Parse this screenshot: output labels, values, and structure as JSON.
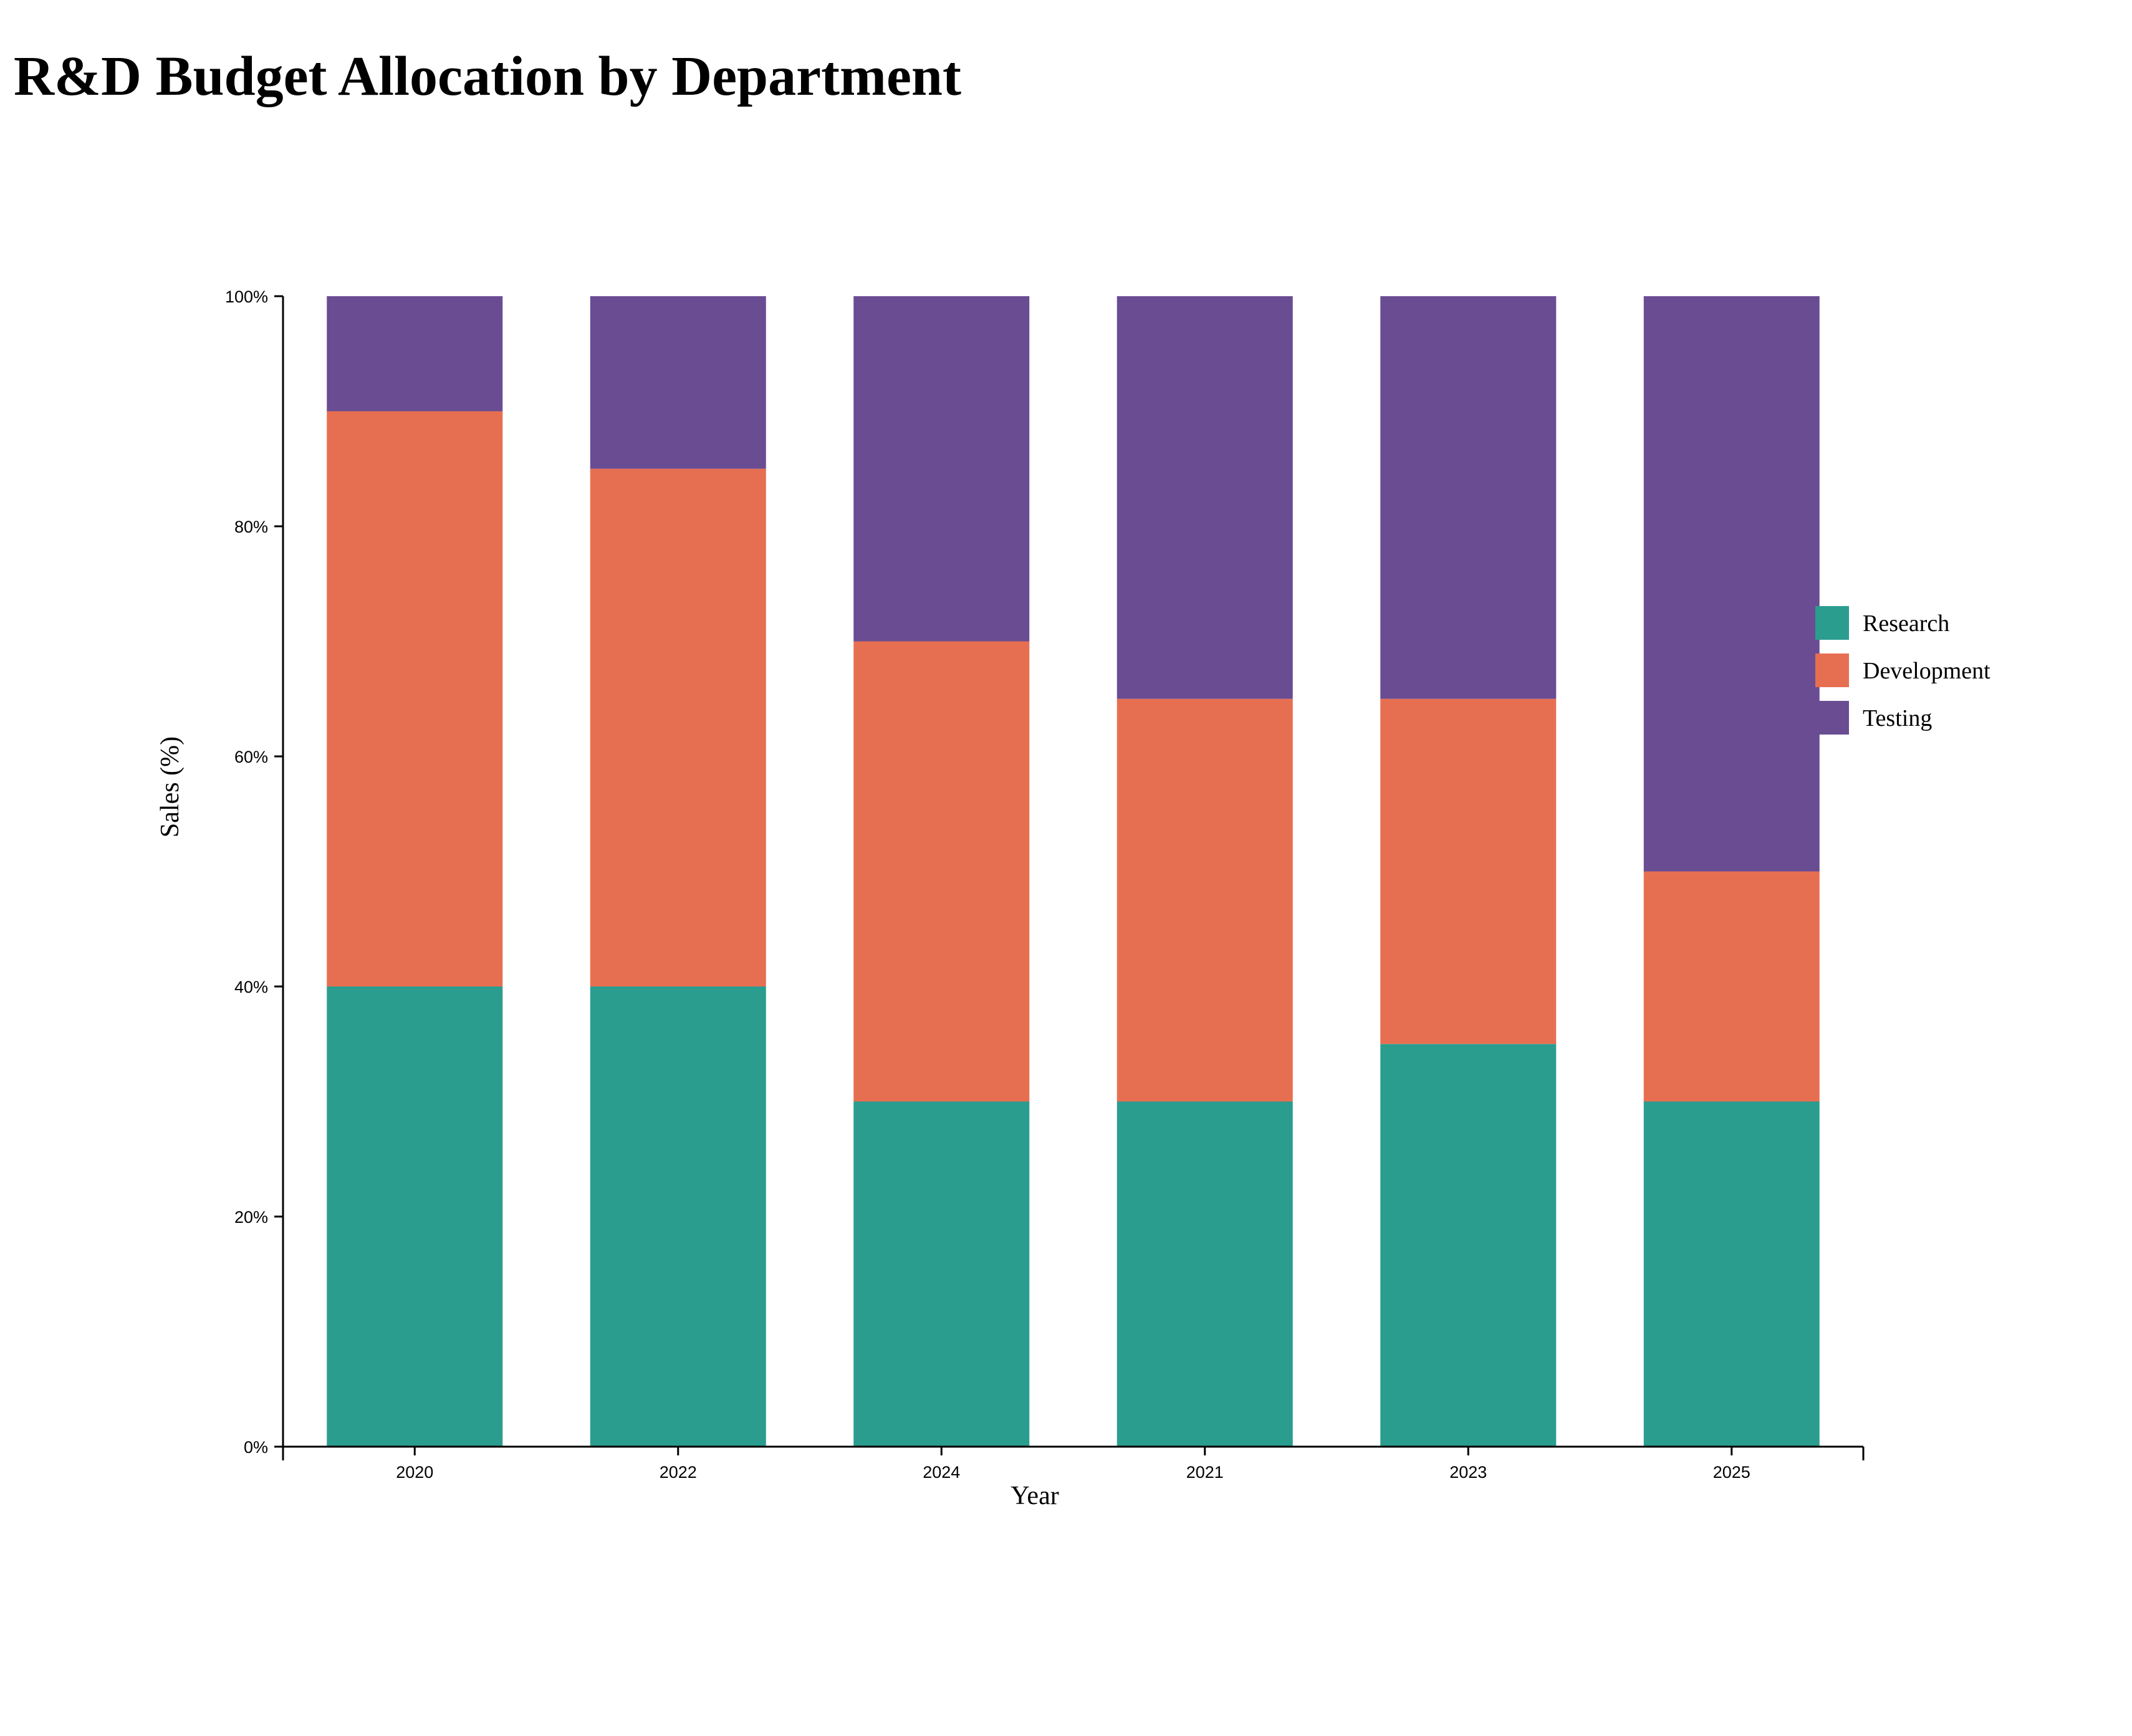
{
  "chart_data": {
    "type": "bar",
    "stacked": true,
    "title": "R&D Budget Allocation by Department",
    "xlabel": "Year",
    "ylabel": "Sales (%)",
    "categories": [
      "2020",
      "2022",
      "2024",
      "2021",
      "2023",
      "2025"
    ],
    "series": [
      {
        "name": "Research",
        "color": "#2a9d8f",
        "values": [
          40,
          40,
          30,
          30,
          35,
          30
        ]
      },
      {
        "name": "Development",
        "color": "#e76f51",
        "values": [
          50,
          45,
          40,
          35,
          30,
          20
        ]
      },
      {
        "name": "Testing",
        "color": "#6a4c93",
        "values": [
          10,
          15,
          30,
          35,
          35,
          50
        ]
      }
    ],
    "ylim": [
      0,
      100
    ],
    "yticks": [
      "0%",
      "20%",
      "40%",
      "60%",
      "80%",
      "100%"
    ],
    "ytick_values": [
      0,
      20,
      40,
      60,
      80,
      100
    ],
    "grid": false,
    "legend_position": "right"
  }
}
